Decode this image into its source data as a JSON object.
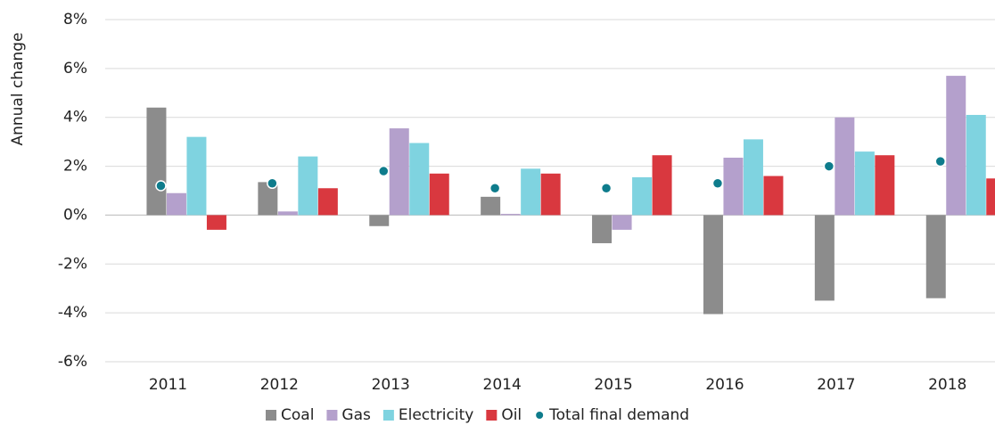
{
  "chart_data": {
    "type": "bar",
    "y_label": "Annual change",
    "categories": [
      "2011",
      "2012",
      "2013",
      "2014",
      "2015",
      "2016",
      "2017",
      "2018"
    ],
    "series": [
      {
        "name": "Coal",
        "color": "#8c8c8c",
        "values": [
          4.4,
          1.35,
          -0.45,
          0.75,
          -1.15,
          -4.05,
          -3.5,
          -3.4
        ]
      },
      {
        "name": "Gas",
        "color": "#b4a0cc",
        "values": [
          0.9,
          0.15,
          3.55,
          0.05,
          -0.6,
          2.35,
          4.0,
          5.7
        ]
      },
      {
        "name": "Electricity",
        "color": "#7fd3e0",
        "values": [
          3.2,
          2.4,
          2.95,
          1.9,
          1.55,
          3.1,
          2.6,
          4.1
        ]
      },
      {
        "name": "Oil",
        "color": "#d9383f",
        "values": [
          -0.6,
          1.1,
          1.7,
          1.7,
          2.45,
          1.6,
          2.45,
          1.5
        ]
      },
      {
        "name": "Total final demand",
        "color": "#0e7c8c",
        "type": "scatter",
        "values": [
          1.2,
          1.3,
          1.8,
          1.1,
          1.1,
          1.3,
          2.0,
          2.2
        ]
      }
    ],
    "ylim": [
      -6,
      8
    ],
    "yticks": [
      {
        "value": -6,
        "label": "-6%"
      },
      {
        "value": -4,
        "label": "-4%"
      },
      {
        "value": -2,
        "label": "-2%"
      },
      {
        "value": 0,
        "label": "0%"
      },
      {
        "value": 2,
        "label": "2%"
      },
      {
        "value": 4,
        "label": "4%"
      },
      {
        "value": 6,
        "label": "6%"
      },
      {
        "value": 8,
        "label": "8%"
      }
    ],
    "grid": true,
    "legend": "bottom"
  }
}
